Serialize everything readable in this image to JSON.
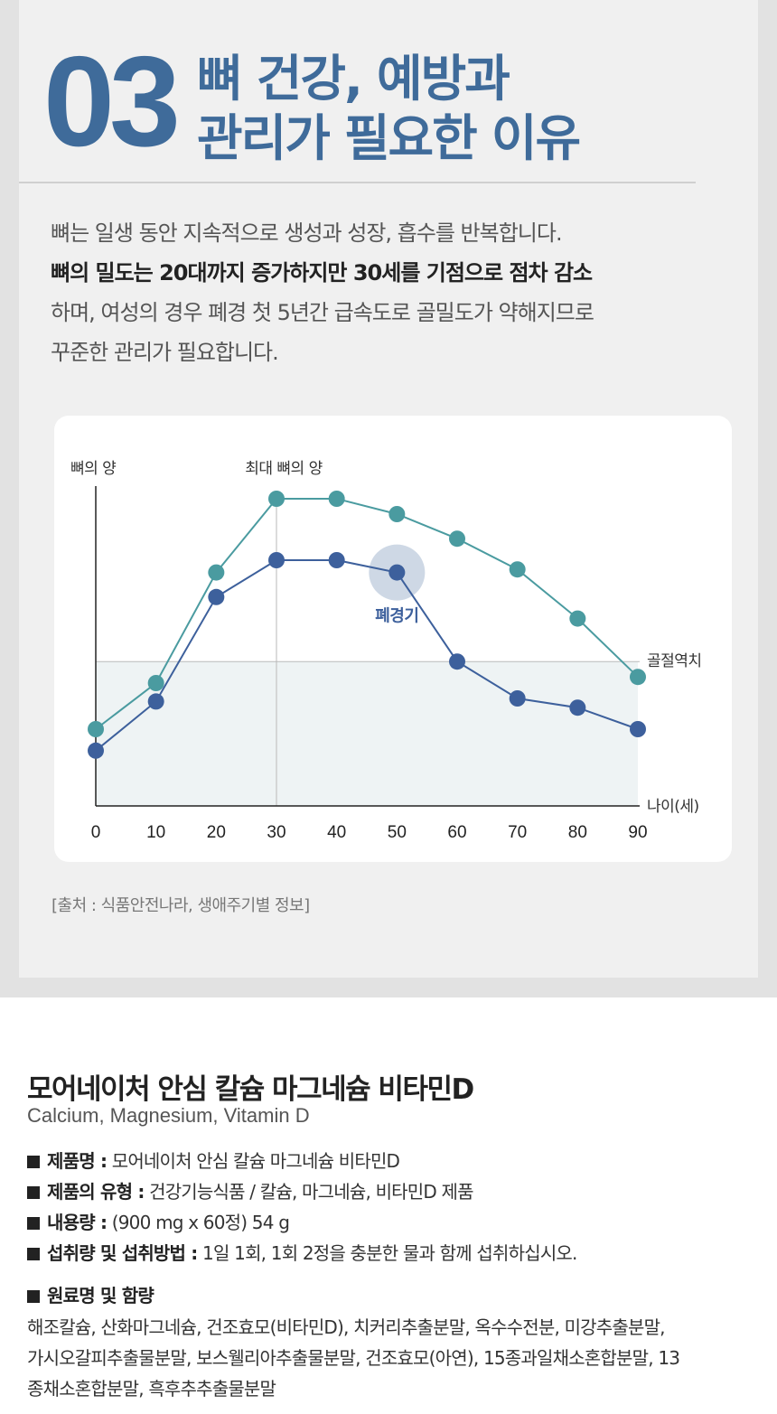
{
  "header": {
    "number": "03",
    "title_line1": "뼈 건강, 예방과",
    "title_line2": "관리가 필요한 이유"
  },
  "intro": {
    "line1": "뼈는 일생 동안 지속적으로 생성과 성장, 흡수를 반복합니다.",
    "line2_bold": "뼈의 밀도는 20대까지 증가하지만 30세를 기점으로 점차 감소",
    "line3": "하며, 여성의 경우 폐경 첫 5년간 급속도로 골밀도가 약해지므로",
    "line4": "꾸준한 관리가 필요합니다."
  },
  "chart_data": {
    "type": "line",
    "ylabel": "뼈의 양",
    "xlabel": "나이(세)",
    "x": [
      0,
      10,
      20,
      30,
      40,
      50,
      60,
      70,
      80,
      90
    ],
    "xlim": [
      0,
      90
    ],
    "ylim": [
      0,
      100
    ],
    "series": [
      {
        "name": "upper",
        "color": "#4a9ba0",
        "values": [
          25,
          40,
          76,
          100,
          100,
          95,
          87,
          77,
          61,
          42
        ]
      },
      {
        "name": "lower",
        "color": "#3d609c",
        "values": [
          18,
          34,
          68,
          80,
          80,
          76,
          47,
          35,
          32,
          25
        ]
      }
    ],
    "threshold": {
      "label": "골절역치",
      "value": 47
    },
    "annotations": {
      "peak_label": "최대 뼈의 양",
      "peak_x": 30,
      "menopause_label": "폐경기",
      "menopause_x": 50
    },
    "fill_color": "#eef3f4",
    "grid": false
  },
  "source": "[출처 : 식품안전나라, 생애주기별 정보]",
  "product": {
    "title": "모어네이처 안심 칼슘 마그네슘 비타민D",
    "subtitle": "Calcium, Magnesium, Vitamin D",
    "specs": [
      {
        "key": "제품명 :",
        "value": " 모어네이처 안심 칼슘 마그네슘 비타민D"
      },
      {
        "key": "제품의 유형 :",
        "value": " 건강기능식품 / 칼슘, 마그네슘, 비타민D 제품"
      },
      {
        "key": "내용량 :",
        "value": " (900 mg x 60정) 54 g"
      },
      {
        "key": "섭취량 및 섭취방법 :",
        "value": " 1일 1회, 1회 2정을 충분한 물과 함께 섭취하십시오."
      }
    ],
    "ingredients_title": "원료명 및 함량",
    "ingredients_lines": [
      "해조칼슘, 산화마그네슘, 건조효모(비타민D), 치커리추출분말, 옥수수전분, 미강추출분말,",
      "가시오갈피추출물분말, 보스웰리아추출물분말, 건조효모(아연), 15종과일채소혼합분말, 13",
      "종채소혼합분말, 흑후추추출물분말"
    ]
  }
}
